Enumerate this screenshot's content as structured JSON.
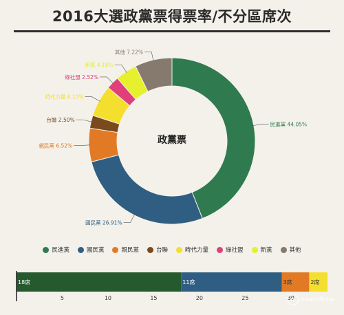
{
  "title": "2016大選政黨票得票率/不分區席次",
  "watermark": "newtalk.tw",
  "chart_data": [
    {
      "type": "pie",
      "center_label": "政黨票",
      "slices": [
        {
          "name": "民進黨",
          "label": "民進黨 44.05%",
          "value": 44.05,
          "color": "#2f7a4f"
        },
        {
          "name": "國民黨",
          "label": "國民黨 26.91%",
          "value": 26.91,
          "color": "#305e82"
        },
        {
          "name": "親民黨",
          "label": "親民黨 6.52%",
          "value": 6.52,
          "color": "#e27a25"
        },
        {
          "name": "台聯",
          "label": "台聯 2.50%",
          "value": 2.5,
          "color": "#7a4a1d"
        },
        {
          "name": "時代力量",
          "label": "時代力量 6.10%",
          "value": 6.1,
          "color": "#f4df2e"
        },
        {
          "name": "綠社盟",
          "label": "綠社盟 2.52%",
          "value": 2.52,
          "color": "#e0407a"
        },
        {
          "name": "新黨",
          "label": "新黨 4.18%",
          "value": 4.18,
          "color": "#e6f02c"
        },
        {
          "name": "其他",
          "label": "其他 7.22%",
          "value": 7.22,
          "color": "#857a6d"
        }
      ]
    },
    {
      "type": "bar",
      "orientation": "horizontal-stacked",
      "series": [
        {
          "name": "民進黨",
          "value": 18,
          "label": "18席",
          "color": "#245a2e",
          "label_color": "#ffffff"
        },
        {
          "name": "國民黨",
          "value": 11,
          "label": "11席",
          "color": "#305e82",
          "label_color": "#ffffff"
        },
        {
          "name": "親民黨",
          "value": 3,
          "label": "3席",
          "color": "#e27a25",
          "label_color": "#333333"
        },
        {
          "name": "時代力量",
          "value": 2,
          "label": "2席",
          "color": "#f4df2e",
          "label_color": "#333333"
        }
      ],
      "ticks": [
        "5",
        "10",
        "15",
        "20",
        "25",
        "30"
      ],
      "xlim": [
        0,
        34
      ]
    }
  ]
}
